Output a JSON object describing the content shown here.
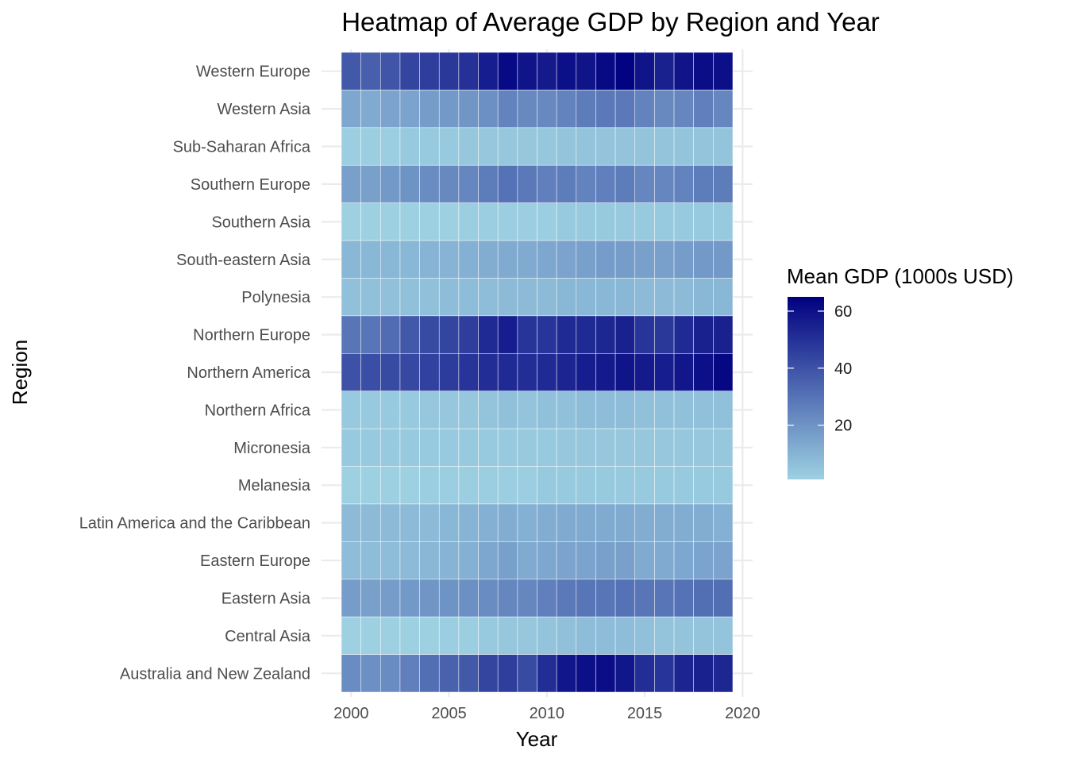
{
  "chart_data": {
    "type": "heatmap",
    "title": "Heatmap of Average GDP by Region and Year",
    "xlabel": "Year",
    "ylabel": "Region",
    "x_ticks": [
      "2000",
      "2005",
      "2010",
      "2015",
      "2020"
    ],
    "x_tick_values": [
      2000,
      2005,
      2010,
      2015,
      2020
    ],
    "xlim": [
      1999.5,
      2020
    ],
    "years": [
      2000,
      2001,
      2002,
      2003,
      2004,
      2005,
      2006,
      2007,
      2008,
      2009,
      2010,
      2011,
      2012,
      2013,
      2014,
      2015,
      2016,
      2017,
      2018,
      2019
    ],
    "regions": [
      "Western Europe",
      "Western Asia",
      "Sub-Saharan Africa",
      "Southern Europe",
      "Southern Asia",
      "South-eastern Asia",
      "Polynesia",
      "Northern Europe",
      "Northern America",
      "Northern Africa",
      "Micronesia",
      "Melanesia",
      "Latin America and the Caribbean",
      "Eastern Europe",
      "Eastern Asia",
      "Central Asia",
      "Australia and New Zealand"
    ],
    "values": [
      [
        38,
        36,
        39,
        44,
        46,
        48,
        50,
        56,
        62,
        59,
        57,
        60,
        59,
        62,
        64,
        59,
        55,
        59,
        61,
        60
      ],
      [
        14,
        13,
        15,
        15,
        17,
        18,
        19,
        21,
        25,
        23,
        23,
        25,
        27,
        28,
        28,
        25,
        23,
        24,
        26,
        24
      ],
      [
        2,
        2,
        2,
        3,
        3,
        3,
        4,
        4,
        4,
        4,
        4,
        5,
        5,
        5,
        5,
        5,
        5,
        5,
        5,
        5
      ],
      [
        16,
        16,
        18,
        20,
        22,
        23,
        24,
        27,
        30,
        28,
        26,
        27,
        25,
        26,
        27,
        24,
        24,
        25,
        27,
        27
      ],
      [
        1,
        1,
        1,
        1,
        1,
        1,
        2,
        2,
        2,
        2,
        2,
        3,
        3,
        3,
        3,
        3,
        3,
        3,
        3,
        3
      ],
      [
        9,
        9,
        9,
        9,
        10,
        10,
        11,
        12,
        13,
        13,
        14,
        15,
        16,
        17,
        17,
        16,
        16,
        17,
        18,
        18
      ],
      [
        6,
        6,
        6,
        6,
        6,
        7,
        7,
        7,
        8,
        8,
        8,
        9,
        9,
        9,
        9,
        8,
        8,
        8,
        9,
        9
      ],
      [
        29,
        29,
        32,
        38,
        42,
        44,
        46,
        52,
        56,
        49,
        49,
        52,
        52,
        53,
        55,
        49,
        48,
        52,
        55,
        55
      ],
      [
        40,
        41,
        42,
        43,
        45,
        47,
        49,
        51,
        52,
        51,
        52,
        54,
        56,
        57,
        59,
        57,
        56,
        58,
        60,
        63
      ],
      [
        3,
        3,
        3,
        3,
        4,
        4,
        4,
        5,
        6,
        5,
        6,
        6,
        7,
        7,
        7,
        6,
        6,
        6,
        6,
        6
      ],
      [
        3,
        3,
        3,
        3,
        3,
        3,
        3,
        3,
        3,
        3,
        3,
        4,
        4,
        4,
        4,
        4,
        4,
        4,
        4,
        4
      ],
      [
        1,
        1,
        1,
        1,
        2,
        2,
        2,
        2,
        2,
        2,
        3,
        3,
        3,
        3,
        3,
        3,
        3,
        3,
        3,
        3
      ],
      [
        8,
        8,
        8,
        8,
        8,
        9,
        10,
        11,
        12,
        11,
        12,
        13,
        13,
        13,
        13,
        12,
        12,
        12,
        12,
        11
      ],
      [
        7,
        7,
        7,
        8,
        9,
        10,
        11,
        14,
        16,
        13,
        14,
        15,
        15,
        16,
        16,
        13,
        13,
        14,
        15,
        15
      ],
      [
        17,
        16,
        17,
        18,
        19,
        20,
        21,
        22,
        24,
        24,
        26,
        28,
        29,
        29,
        30,
        29,
        29,
        30,
        31,
        31
      ],
      [
        1,
        1,
        1,
        1,
        1,
        2,
        2,
        3,
        4,
        4,
        5,
        6,
        7,
        7,
        7,
        6,
        5,
        5,
        5,
        5
      ],
      [
        22,
        21,
        22,
        26,
        31,
        35,
        38,
        44,
        46,
        42,
        51,
        58,
        60,
        61,
        58,
        51,
        49,
        54,
        55,
        53
      ]
    ],
    "legend": {
      "title": "Mean GDP (1000s USD)",
      "ticks": [
        20,
        40,
        60
      ],
      "range": [
        1,
        65
      ],
      "position": "right"
    },
    "colors": {
      "low": "#9dd1e2",
      "high": "#000080"
    },
    "grid": true
  }
}
